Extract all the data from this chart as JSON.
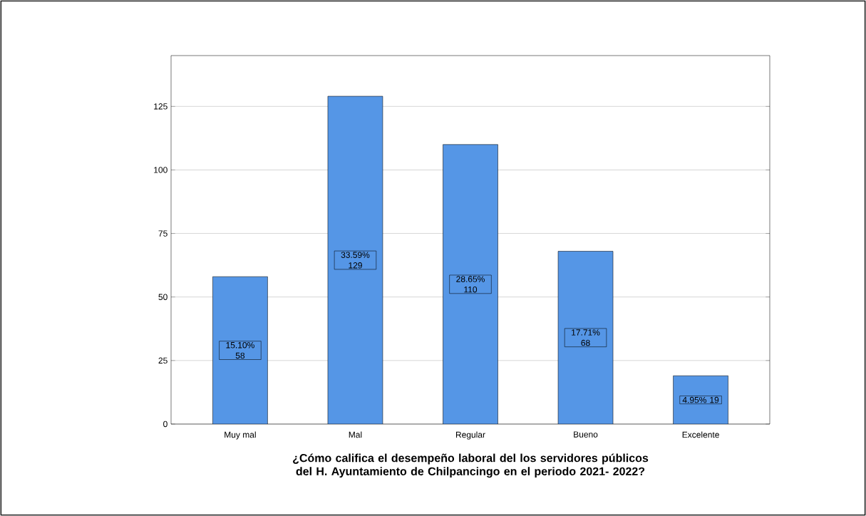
{
  "chart_data": {
    "type": "bar",
    "xlabel": "¿Cómo califica el desempeño laboral del los servidores públicos del H. Ayuntamiento de Chilpancingo en el periodo 2021- 2022?",
    "categories": [
      "Muy mal",
      "Mal",
      "Regular",
      "Bueno",
      "Excelente"
    ],
    "values": [
      58,
      129,
      110,
      68,
      19
    ],
    "value_labels": [
      "15.10% 58",
      "33.59% 129",
      "28.65% 110",
      "17.71% 68",
      "4.95% 19"
    ],
    "color": "#5596e6",
    "ylim": [
      0,
      145
    ],
    "yticks": [
      0,
      25,
      50,
      75,
      100,
      125
    ],
    "grid": "y"
  }
}
